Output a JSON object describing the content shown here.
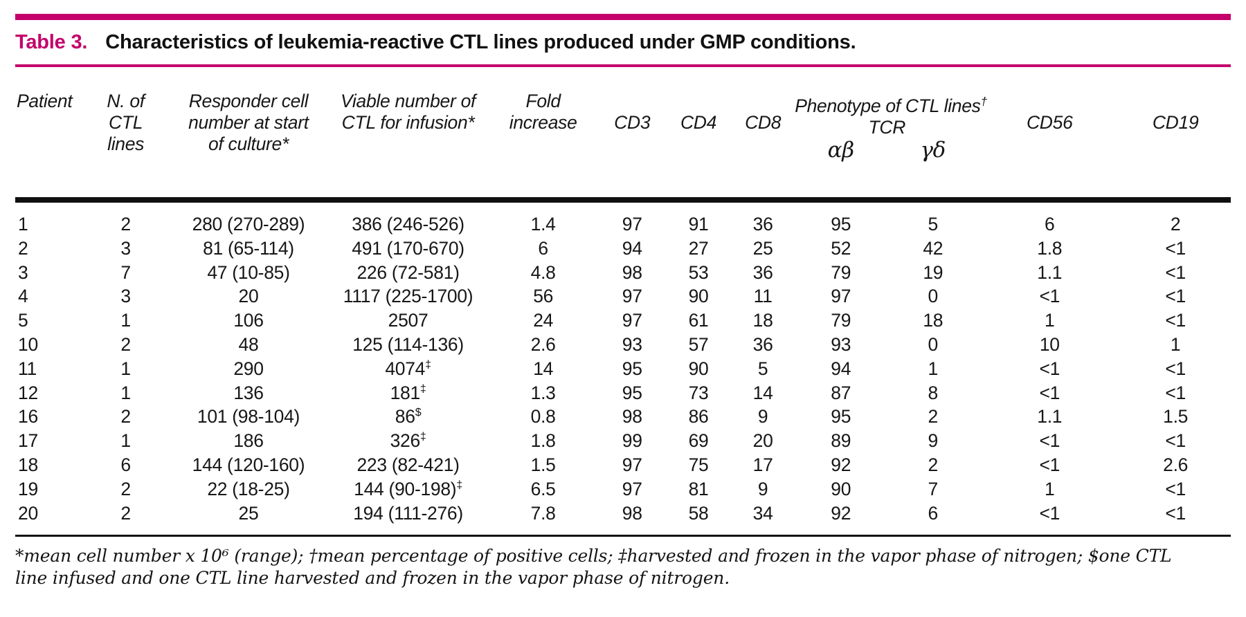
{
  "title": {
    "label": "Table 3.",
    "text": "Characteristics of leukemia-reactive CTL lines produced under GMP conditions."
  },
  "colors": {
    "accent_magenta": "#C4006A",
    "rule_black": "#101010",
    "text": "#171717"
  },
  "header": {
    "patient": "Patient",
    "n_of_ctl_lines": "N. of\nCTL\nlines",
    "responder": "Responder cell\nnumber at start\nof culture*",
    "viable": "Viable number of\nCTL for infusion*",
    "fold": "Fold\nincrease",
    "cd3": "CD3",
    "cd4": "CD4",
    "cd8": "CD8",
    "phenotype_group": "Phenotype of CTL lines",
    "phenotype_sup": "†",
    "tcr": "TCR",
    "tcr_ab": "αβ",
    "tcr_gd": "γδ",
    "cd56": "CD56",
    "cd19": "CD19"
  },
  "table": {
    "rows": [
      [
        "1",
        "2",
        "280 (270-289)",
        "386 (246-526)",
        "1.4",
        "97",
        "91",
        "36",
        "95",
        "5",
        "6",
        "2"
      ],
      [
        "2",
        "3",
        "81 (65-114)",
        "491 (170-670)",
        "6",
        "94",
        "27",
        "25",
        "52",
        "42",
        "1.8",
        "<1"
      ],
      [
        "3",
        "7",
        "47 (10-85)",
        "226 (72-581)",
        "4.8",
        "98",
        "53",
        "36",
        "79",
        "19",
        "1.1",
        "<1"
      ],
      [
        "4",
        "3",
        "20",
        "1117 (225-1700)",
        "56",
        "97",
        "90",
        "11",
        "97",
        "0",
        "<1",
        "<1"
      ],
      [
        "5",
        "1",
        "106",
        "2507",
        "24",
        "97",
        "61",
        "18",
        "79",
        "18",
        "1",
        "<1"
      ],
      [
        "10",
        "2",
        "48",
        "125 (114-136)",
        "2.6",
        "93",
        "57",
        "36",
        "93",
        "0",
        "10",
        "1"
      ],
      [
        "11",
        "1",
        "290",
        "4074‡",
        "14",
        "95",
        "90",
        "5",
        "94",
        "1",
        "<1",
        "<1"
      ],
      [
        "12",
        "1",
        "136",
        "181‡",
        "1.3",
        "95",
        "73",
        "14",
        "87",
        "8",
        "<1",
        "<1"
      ],
      [
        "16",
        "2",
        "101 (98-104)",
        "86$",
        "0.8",
        "98",
        "86",
        "9",
        "95",
        "2",
        "1.1",
        "1.5"
      ],
      [
        "17",
        "1",
        "186",
        "326‡",
        "1.8",
        "99",
        "69",
        "20",
        "89",
        "9",
        "<1",
        "<1"
      ],
      [
        "18",
        "6",
        "144 (120-160)",
        "223 (82-421)",
        "1.5",
        "97",
        "75",
        "17",
        "92",
        "2",
        "<1",
        "2.6"
      ],
      [
        "19",
        "2",
        "22 (18-25)",
        "144 (90-198)‡",
        "6.5",
        "97",
        "81",
        "9",
        "90",
        "7",
        "1",
        "<1"
      ],
      [
        "20",
        "2",
        "25",
        "194 (111-276)",
        "7.8",
        "98",
        "58",
        "34",
        "92",
        "6",
        "<1",
        "<1"
      ]
    ]
  },
  "footnote": {
    "text": "*mean cell number x 10⁶ (range); †mean percentage of positive cells; ‡harvested and frozen in the vapor phase of nitrogen; $one CTL line infused and one CTL line harvested and frozen in the vapor phase of nitrogen."
  }
}
